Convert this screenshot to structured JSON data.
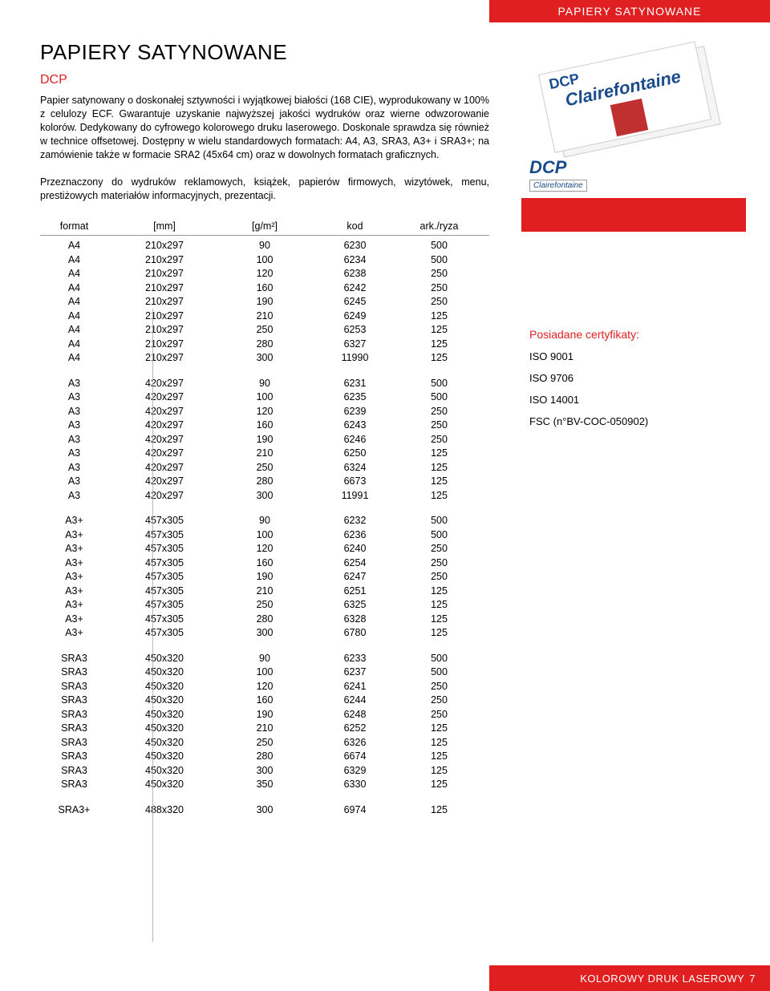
{
  "header": {
    "category": "PAPIERY SATYNOWANE"
  },
  "main": {
    "title": "PAPIERY SATYNOWANE",
    "subtitle": "DCP",
    "paragraph1": "Papier satynowany o doskonałej sztywności i wyjątkowej białości (168 CIE), wyprodukowany w 100% z celulozy ECF. Gwarantuje uzyskanie najwyższej jakości wydruków oraz wierne odwzorowanie kolorów. Dedykowany do cyfrowego kolorowego druku laserowego. Doskonale sprawdza się również w technice offsetowej. Dostępny w wielu standardowych formatach: A4, A3, SRA3, A3+ i SRA3+; na zamówienie także w formacie SRA2 (45x64 cm) oraz w dowolnych formatach graficznych.",
    "paragraph2": "Przeznaczony do wydruków reklamowych, książek, papierów firmowych, wizytówek, menu, prestiżowych materiałów informacyjnych, prezentacji."
  },
  "table": {
    "headers": {
      "format": "format",
      "mm": "[mm]",
      "gm": "[g/m²]",
      "kod": "kod",
      "ark": "ark./ryza"
    },
    "groups": [
      [
        [
          "A4",
          "210x297",
          "90",
          "6230",
          "500"
        ],
        [
          "A4",
          "210x297",
          "100",
          "6234",
          "500"
        ],
        [
          "A4",
          "210x297",
          "120",
          "6238",
          "250"
        ],
        [
          "A4",
          "210x297",
          "160",
          "6242",
          "250"
        ],
        [
          "A4",
          "210x297",
          "190",
          "6245",
          "250"
        ],
        [
          "A4",
          "210x297",
          "210",
          "6249",
          "125"
        ],
        [
          "A4",
          "210x297",
          "250",
          "6253",
          "125"
        ],
        [
          "A4",
          "210x297",
          "280",
          "6327",
          "125"
        ],
        [
          "A4",
          "210x297",
          "300",
          "11990",
          "125"
        ]
      ],
      [
        [
          "A3",
          "420x297",
          "90",
          "6231",
          "500"
        ],
        [
          "A3",
          "420x297",
          "100",
          "6235",
          "500"
        ],
        [
          "A3",
          "420x297",
          "120",
          "6239",
          "250"
        ],
        [
          "A3",
          "420x297",
          "160",
          "6243",
          "250"
        ],
        [
          "A3",
          "420x297",
          "190",
          "6246",
          "250"
        ],
        [
          "A3",
          "420x297",
          "210",
          "6250",
          "125"
        ],
        [
          "A3",
          "420x297",
          "250",
          "6324",
          "125"
        ],
        [
          "A3",
          "420x297",
          "280",
          "6673",
          "125"
        ],
        [
          "A3",
          "420x297",
          "300",
          "11991",
          "125"
        ]
      ],
      [
        [
          "A3+",
          "457x305",
          "90",
          "6232",
          "500"
        ],
        [
          "A3+",
          "457x305",
          "100",
          "6236",
          "500"
        ],
        [
          "A3+",
          "457x305",
          "120",
          "6240",
          "250"
        ],
        [
          "A3+",
          "457x305",
          "160",
          "6254",
          "250"
        ],
        [
          "A3+",
          "457x305",
          "190",
          "6247",
          "250"
        ],
        [
          "A3+",
          "457x305",
          "210",
          "6251",
          "125"
        ],
        [
          "A3+",
          "457x305",
          "250",
          "6325",
          "125"
        ],
        [
          "A3+",
          "457x305",
          "280",
          "6328",
          "125"
        ],
        [
          "A3+",
          "457x305",
          "300",
          "6780",
          "125"
        ]
      ],
      [
        [
          "SRA3",
          "450x320",
          "90",
          "6233",
          "500"
        ],
        [
          "SRA3",
          "450x320",
          "100",
          "6237",
          "500"
        ],
        [
          "SRA3",
          "450x320",
          "120",
          "6241",
          "250"
        ],
        [
          "SRA3",
          "450x320",
          "160",
          "6244",
          "250"
        ],
        [
          "SRA3",
          "450x320",
          "190",
          "6248",
          "250"
        ],
        [
          "SRA3",
          "450x320",
          "210",
          "6252",
          "125"
        ],
        [
          "SRA3",
          "450x320",
          "250",
          "6326",
          "125"
        ],
        [
          "SRA3",
          "450x320",
          "280",
          "6674",
          "125"
        ],
        [
          "SRA3",
          "450x320",
          "300",
          "6329",
          "125"
        ],
        [
          "SRA3",
          "450x320",
          "350",
          "6330",
          "125"
        ]
      ],
      [
        [
          "SRA3+",
          "488x320",
          "300",
          "6974",
          "125"
        ]
      ]
    ]
  },
  "sidebar": {
    "brand_dcp": "DCP",
    "brand_name": "Clairefontaine",
    "cert_title": "Posiadane certyfikaty:",
    "certs": [
      "ISO 9001",
      "ISO 9706",
      "ISO 14001",
      "FSC (n°BV-COC-050902)"
    ]
  },
  "footer": {
    "label": "KOLOROWY DRUK LASEROWY",
    "page": "7"
  },
  "colors": {
    "red": "#e02020",
    "blue": "#1a4b8c",
    "text": "#000000",
    "bg": "#ffffff"
  }
}
